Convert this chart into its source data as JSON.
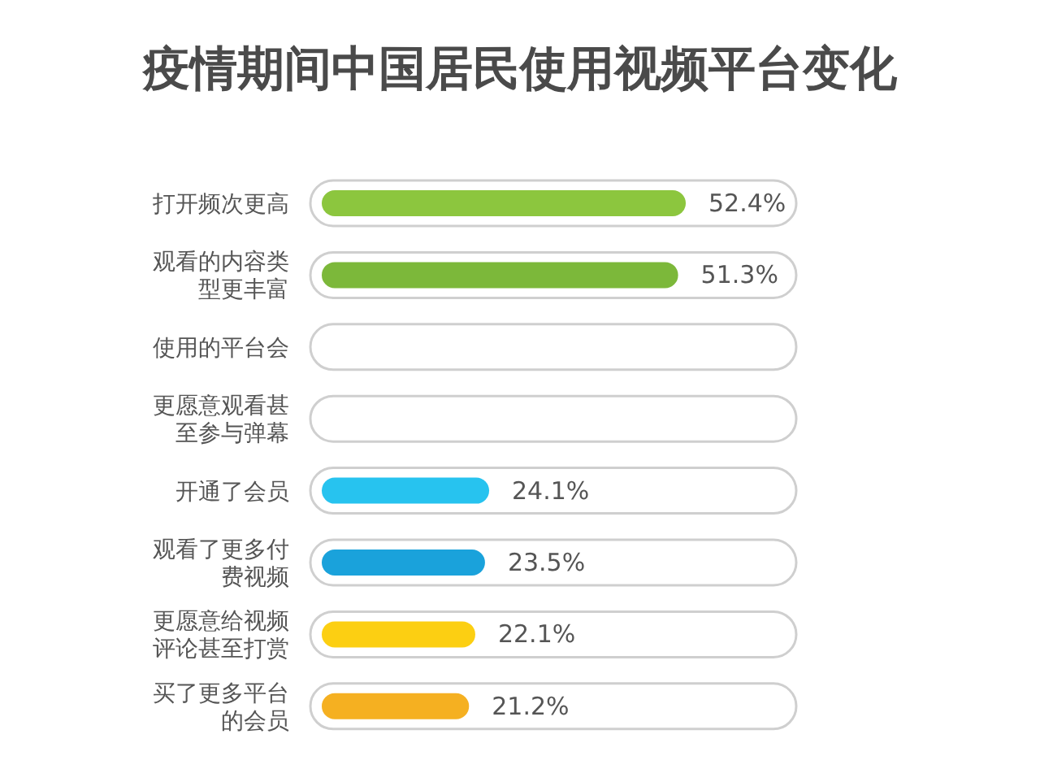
{
  "chart_data": {
    "type": "bar",
    "orientation": "horizontal",
    "title": "疫情期间中国居民使用视频平台变化",
    "categories": [
      "打开频次更高",
      "观看的内容类型更丰富",
      "使用的平台会",
      "更愿意观看甚至参与弹幕",
      "开通了会员",
      "观看了更多付费视频",
      "更愿意给视频评论甚至打赏",
      "买了更多平台的会员"
    ],
    "values": [
      52.4,
      51.3,
      null,
      null,
      24.1,
      23.5,
      22.1,
      21.2
    ],
    "value_labels": [
      "52.4%",
      "51.3%",
      null,
      null,
      "24.1%",
      "23.5%",
      "22.1%",
      "21.2%"
    ],
    "colors": [
      "#8cc63e",
      "#7cb83a",
      null,
      null,
      "#27c3ef",
      "#1aa2db",
      "#fccf12",
      "#f5b021"
    ]
  }
}
